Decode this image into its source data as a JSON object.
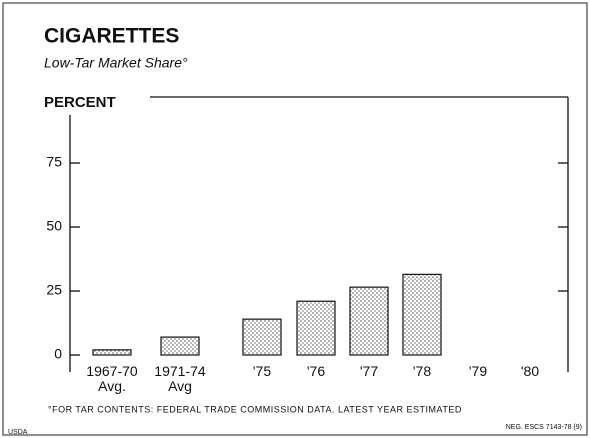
{
  "chart_data": {
    "type": "bar",
    "title": "CIGARETTES",
    "subtitle": "Low-Tar Market Share°",
    "y_label": "PERCENT",
    "categories": [
      "1967-70 Avg.",
      "1971-74 Avg",
      "'75",
      "'76",
      "'77",
      "'78",
      "'79",
      "'80"
    ],
    "values": [
      2,
      7,
      14,
      21,
      26.5,
      31.5,
      null,
      null
    ],
    "color": "#ffffff",
    "ylim": [
      0,
      100
    ],
    "yticks": [
      0,
      25,
      50,
      75
    ],
    "footnote": "°FOR TAR CONTENTS: FEDERAL TRADE COMMISSION DATA. LATEST YEAR ESTIMATED",
    "source_left": "USDA",
    "source_right": "NEG. ESCS 7143-78 (9)"
  }
}
